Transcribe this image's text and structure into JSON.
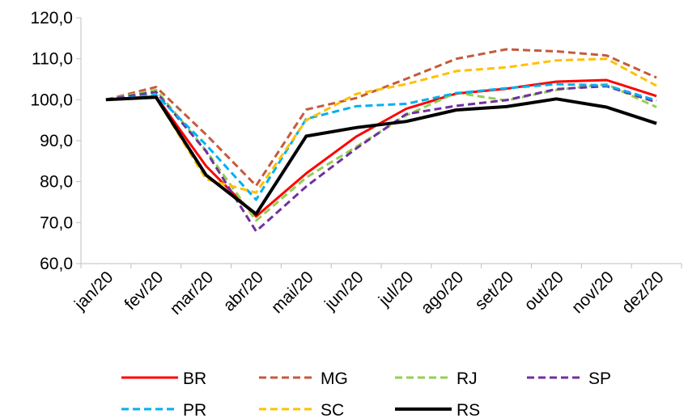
{
  "chart_data": {
    "type": "line",
    "title": "",
    "xlabel": "",
    "ylabel": "",
    "ylim": [
      60,
      120
    ],
    "y_ticks": [
      "60,0",
      "70,0",
      "80,0",
      "90,0",
      "100,0",
      "110,0",
      "120,0"
    ],
    "grid": false,
    "legend_position": "bottom",
    "categories": [
      "jan/20",
      "fev/20",
      "mar/20",
      "abr/20",
      "mai/20",
      "jun/20",
      "jul/20",
      "ago/20",
      "set/20",
      "out/20",
      "nov/20",
      "dez/20"
    ],
    "series": [
      {
        "name": "BR",
        "color": "#ff0000",
        "dash": "solid",
        "values": [
          100.0,
          100.8,
          83.8,
          71.5,
          82.0,
          91.0,
          97.8,
          101.5,
          102.7,
          104.4,
          104.8,
          100.9
        ]
      },
      {
        "name": "MG",
        "color": "#c55a3c",
        "dash": "dashed",
        "values": [
          100.0,
          103.1,
          91.5,
          79.0,
          97.6,
          100.4,
          105.1,
          110.0,
          112.3,
          111.8,
          110.8,
          105.4
        ]
      },
      {
        "name": "RJ",
        "color": "#92d050",
        "dash": "dashed",
        "values": [
          100.0,
          102.4,
          87.6,
          70.5,
          81.0,
          88.5,
          96.2,
          101.7,
          99.8,
          102.4,
          103.8,
          98.2
        ]
      },
      {
        "name": "SP",
        "color": "#7030a0",
        "dash": "dashed",
        "values": [
          100.0,
          101.9,
          87.4,
          67.9,
          78.8,
          88.1,
          96.5,
          98.5,
          99.9,
          102.6,
          103.3,
          99.4
        ]
      },
      {
        "name": "PR",
        "color": "#00b0f0",
        "dash": "dashed",
        "values": [
          100.0,
          101.2,
          89.0,
          75.6,
          95.3,
          98.4,
          99.0,
          101.6,
          102.8,
          103.8,
          103.5,
          99.8
        ]
      },
      {
        "name": "SC",
        "color": "#ffc000",
        "dash": "dashed",
        "values": [
          100.0,
          100.5,
          80.6,
          77.3,
          95.0,
          101.4,
          103.8,
          107.0,
          107.9,
          109.6,
          110.0,
          103.4
        ]
      },
      {
        "name": "RS",
        "color": "#000000",
        "dash": "solid",
        "values": [
          100.0,
          100.6,
          81.6,
          72.1,
          91.1,
          93.2,
          94.7,
          97.5,
          98.3,
          100.2,
          98.2,
          94.2
        ]
      }
    ]
  }
}
